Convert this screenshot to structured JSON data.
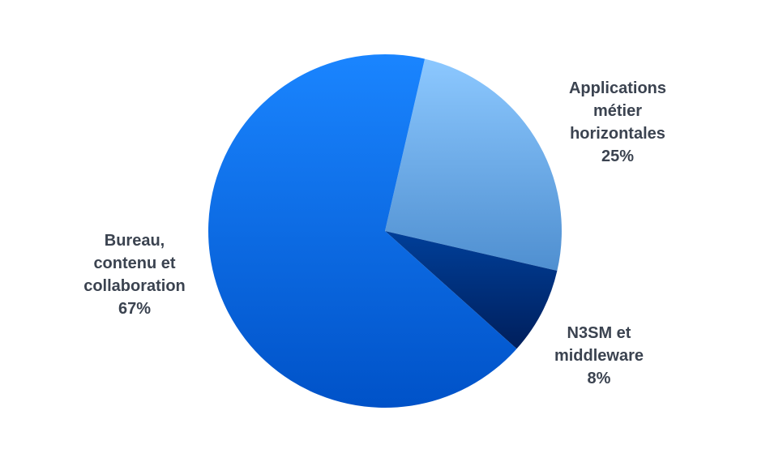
{
  "chart_data": {
    "type": "pie",
    "title": "",
    "slices": [
      {
        "label": "Applications métier horizontales",
        "lines": [
          "Applications",
          "métier",
          "horizontales"
        ],
        "value": 25,
        "value_label": "25%",
        "gradient": [
          "#8cc8ff",
          "#4f8fd0"
        ]
      },
      {
        "label": "N3SM et middleware",
        "lines": [
          "N3SM et",
          "middleware"
        ],
        "value": 8,
        "value_label": "8%",
        "gradient": [
          "#003f99",
          "#001f5c"
        ]
      },
      {
        "label": "Bureau, contenu et collaboration",
        "lines": [
          "Bureau,",
          "contenu et",
          "collaboration"
        ],
        "value": 67,
        "value_label": "67%",
        "gradient": [
          "#1a85ff",
          "#0052c8"
        ]
      }
    ],
    "start_angle_deg": 13,
    "legend": "none",
    "label_color": "#3b4350"
  }
}
